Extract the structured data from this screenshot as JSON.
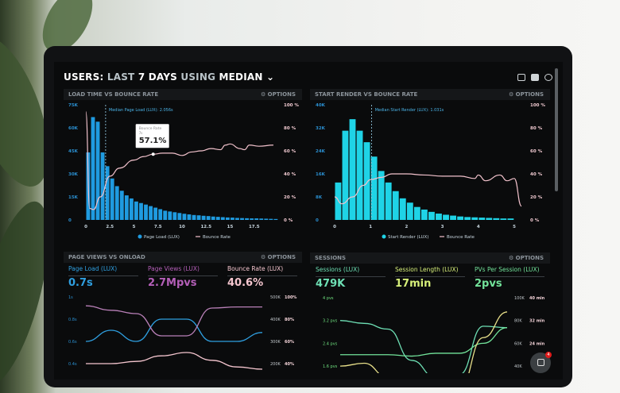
{
  "header": {
    "title_parts": [
      "USERS:",
      "LAST",
      "7 DAYS",
      "USING",
      "MEDIAN"
    ],
    "dropdown_icon": "chevron-down-icon",
    "icons": [
      "monitor-icon",
      "share-icon",
      "help-icon"
    ]
  },
  "options_label": "⚙ OPTIONS",
  "panels": [
    {
      "title": "LOAD TIME VS BOUNCE RATE"
    },
    {
      "title": "START RENDER VS BOUNCE RATE"
    },
    {
      "title": "PAGE VIEWS VS ONLOAD",
      "kpis": [
        {
          "label": "Page Load (LUX)",
          "value": "0.7s",
          "color": "#2f9fe0"
        },
        {
          "label": "Page Views (LUX)",
          "value": "2.7Mpvs",
          "color": "#b45fb8"
        },
        {
          "label": "Bounce Rate (LUX)",
          "value": "40.6%",
          "color": "#f5c6cf"
        }
      ]
    },
    {
      "title": "SESSIONS",
      "kpis": [
        {
          "label": "Sessions (LUX)",
          "value": "479K",
          "color": "#6ee0b5"
        },
        {
          "label": "Session Length (LUX)",
          "value": "17min",
          "color": "#d7f07a"
        },
        {
          "label": "PVs Per Session (LUX)",
          "value": "2pvs",
          "color": "#72e39a"
        }
      ]
    }
  ],
  "chat": {
    "badge": "4",
    "icon": "chat-icon"
  },
  "chart_data": [
    {
      "type": "bar",
      "title": "LOAD TIME VS BOUNCE RATE",
      "xticks": [
        "0",
        "2.5",
        "5",
        "7.5",
        "10",
        "12.5",
        "15",
        "17.5"
      ],
      "xtick_values": [
        0,
        2.5,
        5,
        7.5,
        10,
        12.5,
        15,
        17.5
      ],
      "yticks_left": [
        "0",
        "15K",
        "30K",
        "45K",
        "60K",
        "75K"
      ],
      "ylim_left": [
        0,
        75000
      ],
      "yticks_right": [
        "0 %",
        "20 %",
        "40 %",
        "60 %",
        "80 %",
        "100 %"
      ],
      "ylim_right": [
        0,
        100
      ],
      "bar_width": 0.5,
      "bars": [
        44000,
        67000,
        64000,
        44000,
        35000,
        27000,
        22000,
        19000,
        16000,
        14000,
        12000,
        11000,
        10000,
        9000,
        8000,
        7000,
        6000,
        5500,
        5000,
        4500,
        4000,
        3600,
        3200,
        3000,
        2700,
        2500,
        2200,
        2000,
        1800,
        1600,
        1500,
        1300,
        1200,
        1100,
        1000,
        1000,
        900,
        800,
        700,
        600
      ],
      "line": [
        [
          0,
          94
        ],
        [
          0.4,
          10
        ],
        [
          0.8,
          9
        ],
        [
          1.5,
          20
        ],
        [
          2.5,
          38
        ],
        [
          3.5,
          45
        ],
        [
          5,
          52
        ],
        [
          6,
          55
        ],
        [
          7,
          57.1
        ],
        [
          8,
          58
        ],
        [
          9,
          58
        ],
        [
          10,
          56
        ],
        [
          11,
          59
        ],
        [
          12,
          60
        ],
        [
          13,
          62
        ],
        [
          14,
          61
        ],
        [
          14.5,
          65
        ],
        [
          15,
          66
        ],
        [
          16,
          62
        ],
        [
          16.5,
          61
        ],
        [
          17,
          65
        ],
        [
          18,
          64
        ],
        [
          19.5,
          65
        ]
      ],
      "median": {
        "x": 2.056,
        "label": "Median Page Load (LUX): 2.056s"
      },
      "tooltip": {
        "title": "Bounce Rate",
        "sub": "7s",
        "value": "57.1%",
        "x": 7
      },
      "legend": [
        "Page Load (LUX)",
        "Bounce Rate"
      ],
      "bar_color": "#1f9be0",
      "line_color": "#f2c2cc"
    },
    {
      "type": "bar",
      "title": "START RENDER VS BOUNCE RATE",
      "xticks": [
        "0",
        "1",
        "2",
        "3",
        "4",
        "5"
      ],
      "xtick_values": [
        0,
        1,
        2,
        3,
        4,
        5
      ],
      "yticks_left": [
        "0",
        "8K",
        "16K",
        "24K",
        "32K",
        "40K"
      ],
      "ylim_left": [
        0,
        40000
      ],
      "yticks_right": [
        "0 %",
        "20 %",
        "40 %",
        "60 %",
        "80 %",
        "100 %"
      ],
      "ylim_right": [
        0,
        100
      ],
      "bar_width": 0.2,
      "bars": [
        13000,
        31000,
        35000,
        31000,
        27000,
        22000,
        17000,
        13000,
        10000,
        7500,
        6000,
        4500,
        3600,
        2800,
        2200,
        1800,
        1500,
        1200,
        1000,
        900,
        800,
        700,
        600,
        500,
        500
      ],
      "line": [
        [
          0,
          20
        ],
        [
          0.2,
          14
        ],
        [
          0.5,
          20
        ],
        [
          0.8,
          30
        ],
        [
          1,
          35
        ],
        [
          1.3,
          37
        ],
        [
          1.6,
          40
        ],
        [
          2,
          40
        ],
        [
          2.5,
          39
        ],
        [
          3,
          38
        ],
        [
          3.5,
          38
        ],
        [
          3.9,
          36
        ],
        [
          4,
          39
        ],
        [
          4.2,
          34
        ],
        [
          4.6,
          39
        ],
        [
          4.8,
          34
        ],
        [
          5,
          36
        ],
        [
          5.2,
          12
        ]
      ],
      "median": {
        "x": 1.031,
        "label": "Median Start Render (LUX): 1.031s"
      },
      "legend": [
        "Start Render (LUX)",
        "Bounce Rate"
      ],
      "bar_color": "#1fd3e6",
      "line_color": "#f2c2cc"
    },
    {
      "type": "line",
      "title": "PAGE VIEWS VS ONLOAD",
      "yticks_left": [
        "1s",
        "0.8s",
        "0.6s",
        "0.4s"
      ],
      "ylim_left": [
        0.4,
        1
      ],
      "yticks_right_a": [
        "500K",
        "400K",
        "300K",
        "200K"
      ],
      "yticks_right_b": [
        "100%",
        "80%",
        "60%",
        "40%"
      ],
      "series": [
        {
          "color": "#2f9fe0",
          "values": [
            0.6,
            0.7,
            0.6,
            0.8,
            0.8,
            0.6,
            0.6,
            0.68
          ]
        },
        {
          "color": "#b980b8",
          "values": [
            0.92,
            0.88,
            0.85,
            0.65,
            0.65,
            0.9,
            0.91,
            0.91
          ]
        },
        {
          "color": "#f5c6cf",
          "values": [
            0.4,
            0.4,
            0.42,
            0.47,
            0.5,
            0.43,
            0.37,
            0.35
          ]
        }
      ]
    },
    {
      "type": "line",
      "title": "SESSIONS",
      "yticks_left": [
        "4 pvs",
        "3.2 pvs",
        "2.4 pvs",
        "1.6 pvs"
      ],
      "ylim_left": [
        1.6,
        4
      ],
      "yticks_right_a": [
        "100K",
        "80K",
        "60K",
        "40K"
      ],
      "yticks_right_b": [
        "40 min",
        "32 min",
        "24 min",
        ""
      ],
      "series": [
        {
          "color": "#6ee0b5",
          "values": [
            3.2,
            3.1,
            2.9,
            1.8,
            1.2,
            1.3,
            3.0,
            2.95
          ]
        },
        {
          "color": "#72e39a",
          "values": [
            2.0,
            2.0,
            2.0,
            1.95,
            2.05,
            2.05,
            2.4,
            2.95
          ]
        },
        {
          "color": "#e8e08a",
          "values": [
            1.6,
            1.7,
            1.2,
            0.8,
            0.6,
            0.8,
            2.6,
            3.5
          ]
        }
      ]
    }
  ]
}
